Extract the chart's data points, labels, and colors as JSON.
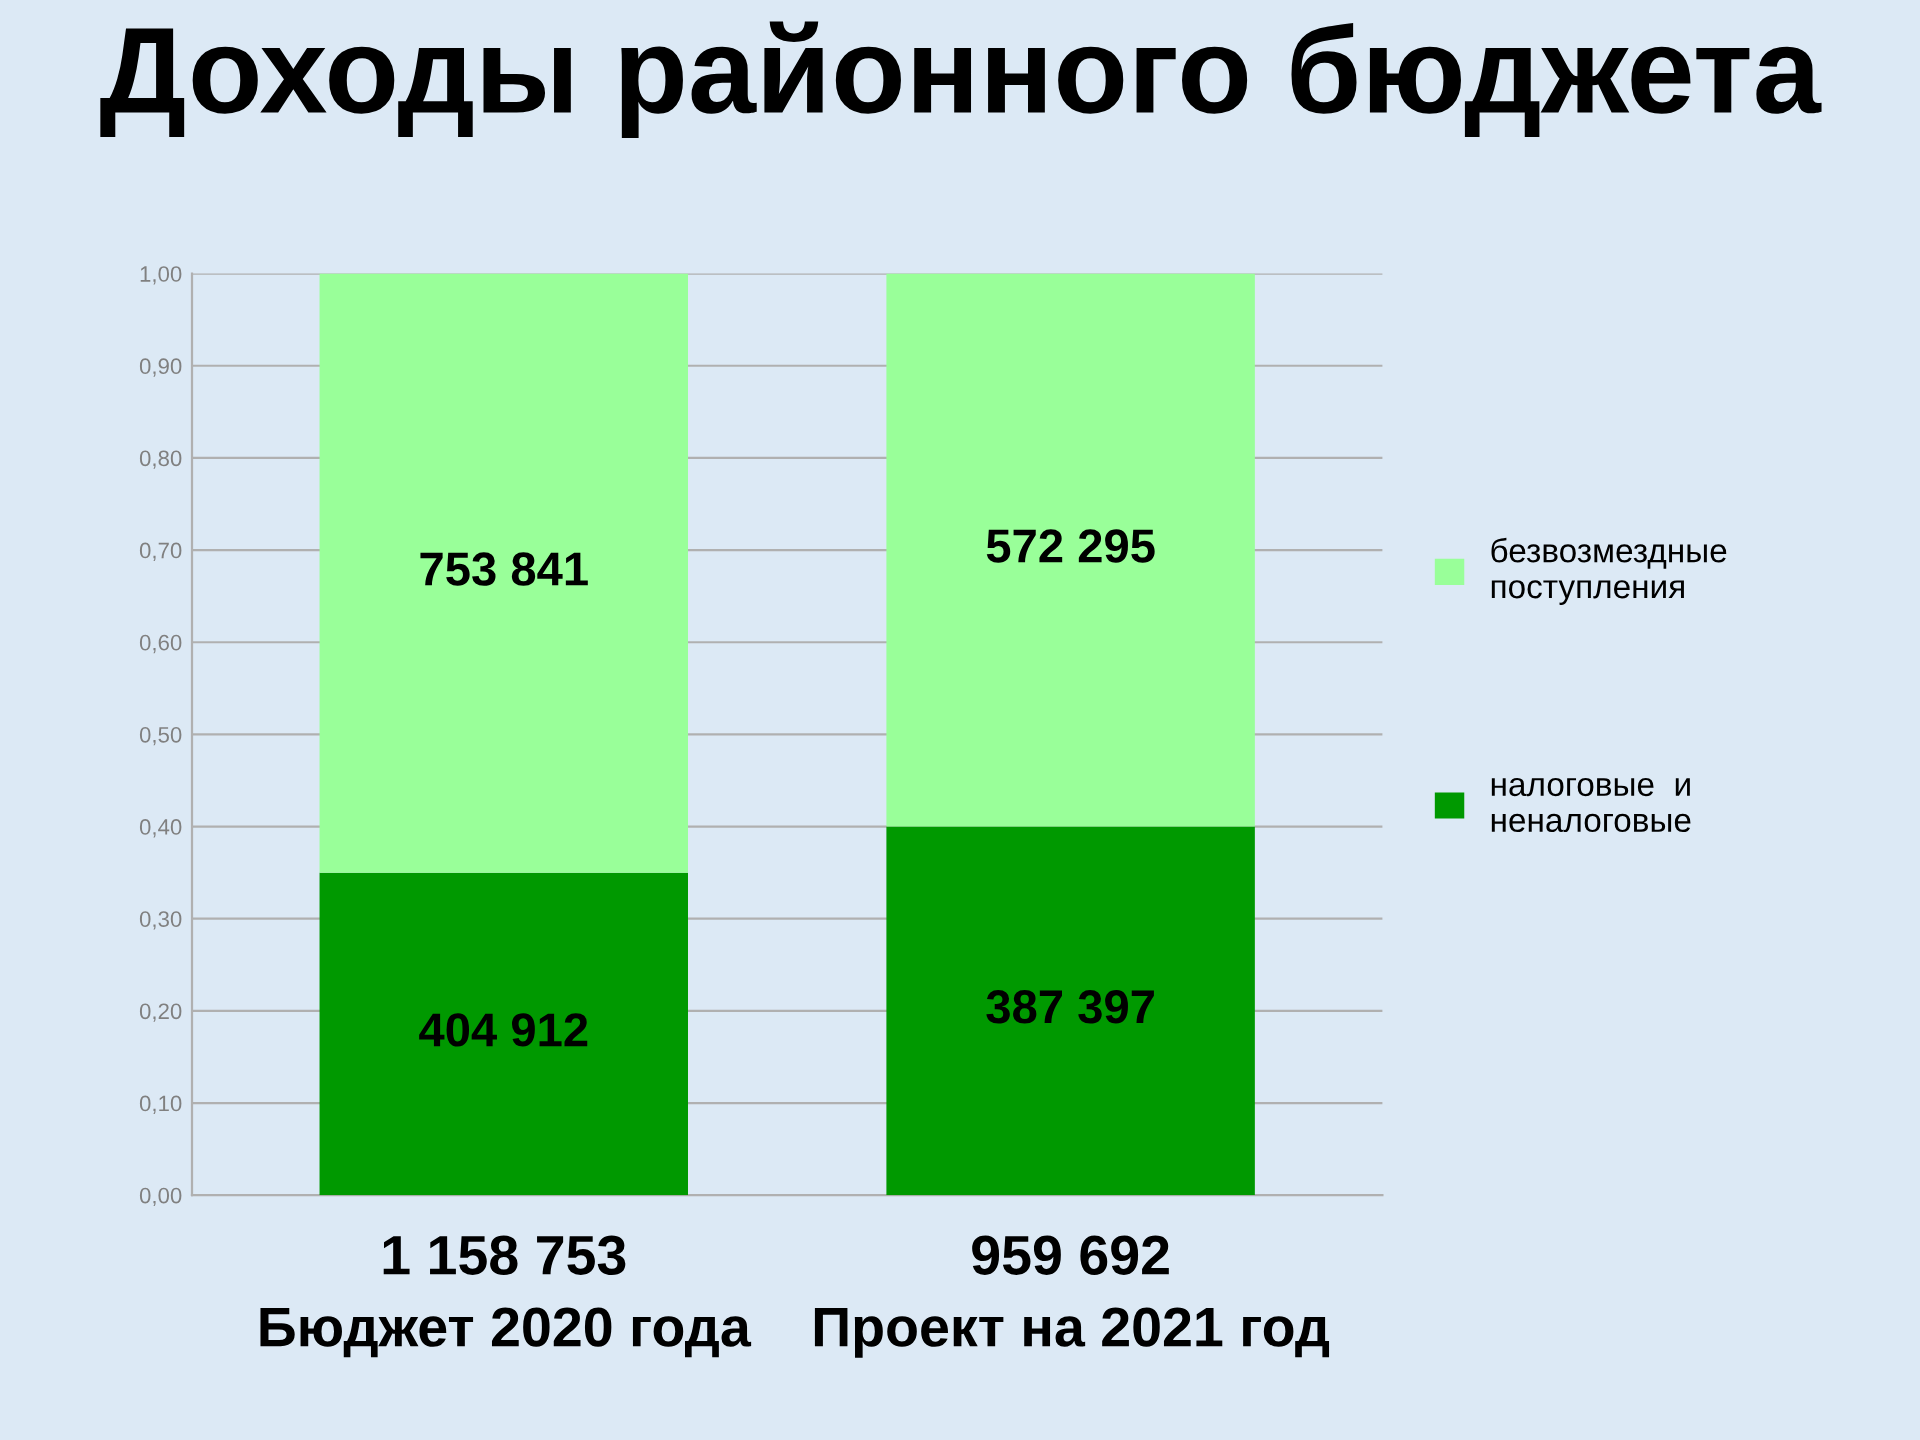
{
  "chart_data": {
    "type": "bar",
    "title": "Доходы районного бюджета",
    "categories": [
      "1 158 753\nБюджет 2020 года",
      "959 692\nПроект на 2021 год"
    ],
    "stacked": true,
    "series": [
      {
        "name": "налоговые  и неналоговые",
        "color": "#009900",
        "values": [
          0.35,
          0.4
        ]
      },
      {
        "name": "безвозмездные поступления",
        "color": "#99ff99",
        "values": [
          0.65,
          0.6
        ]
      }
    ],
    "annotations": [
      "404 912",
      "387 397",
      "753 841",
      "572 295"
    ],
    "ylim": [
      0,
      1
    ],
    "yticks": [
      {
        "value": 0,
        "label": "0,00"
      },
      {
        "value": 0.1,
        "label": "0,10"
      },
      {
        "value": 0.2,
        "label": "0,20"
      },
      {
        "value": 0.3,
        "label": "0,30"
      },
      {
        "value": 0.4,
        "label": "0,40"
      },
      {
        "value": 0.5,
        "label": "0,50"
      },
      {
        "value": 0.6,
        "label": "0,60"
      },
      {
        "value": 0.7,
        "label": "0,70"
      },
      {
        "value": 0.8,
        "label": "0,80"
      },
      {
        "value": 0.9,
        "label": "0,90"
      },
      {
        "value": 1,
        "label": "1,00"
      }
    ],
    "grid": "y",
    "legend": "right"
  }
}
